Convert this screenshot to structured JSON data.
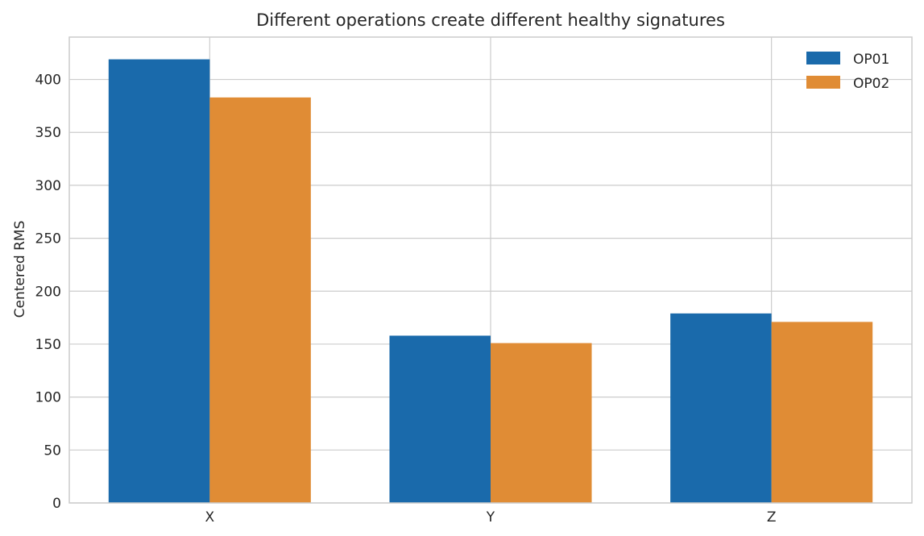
{
  "chart_data": {
    "type": "bar",
    "title": "Different operations create different healthy signatures",
    "xlabel": "",
    "ylabel": "Centered RMS",
    "categories": [
      "X",
      "Y",
      "Z"
    ],
    "series": [
      {
        "name": "OP01",
        "color": "#1a6aab",
        "values": [
          419,
          158,
          179
        ]
      },
      {
        "name": "OP02",
        "color": "#e08c35",
        "values": [
          383,
          151,
          171
        ]
      }
    ],
    "ylim": [
      0,
      440
    ],
    "yticks": [
      0,
      50,
      100,
      150,
      200,
      250,
      300,
      350,
      400
    ],
    "grid": true,
    "legend_position": "top-right"
  }
}
